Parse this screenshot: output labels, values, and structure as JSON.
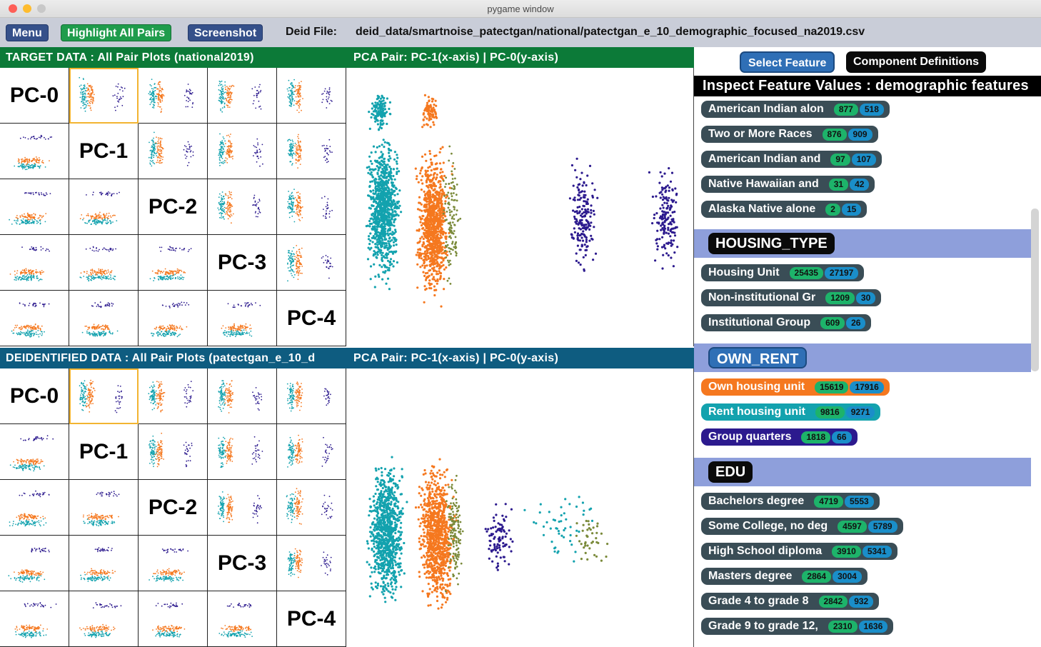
{
  "window": {
    "title": "pygame window"
  },
  "toolbar": {
    "menu_label": "Menu",
    "highlight_label": "Highlight All Pairs",
    "screenshot_label": "Screenshot",
    "deid_file_label": "Deid File:",
    "deid_file_path": "deid_data/smartnoise_patectgan/national/patectgan_e_10_demographic_focused_na2019.csv"
  },
  "target": {
    "title": "TARGET DATA : All Pair Plots (national2019)",
    "pca_pair": "PCA Pair: PC-1(x-axis) | PC-0(y-axis)"
  },
  "deid": {
    "title": "DEIDENTIFIED DATA : All Pair Plots (patectgan_e_10_d",
    "pca_pair": "PCA Pair: PC-1(x-axis) | PC-0(y-axis)"
  },
  "components": [
    "PC-0",
    "PC-1",
    "PC-2",
    "PC-3",
    "PC-4"
  ],
  "sidebar": {
    "select_feature_label": "Select Feature",
    "component_definitions_label": "Component Definitions",
    "inspect_title": "Inspect Feature Values : demographic features",
    "race_items": [
      {
        "name": "American Indian alon",
        "a": "877",
        "b": "518"
      },
      {
        "name": "Two or More Races",
        "a": "876",
        "b": "909"
      },
      {
        "name": "American Indian and",
        "a": "97",
        "b": "107"
      },
      {
        "name": "Native Hawaiian and",
        "a": "31",
        "b": "42"
      },
      {
        "name": "Alaska Native alone",
        "a": "2",
        "b": "15"
      }
    ],
    "housing_type": {
      "label": "HOUSING_TYPE",
      "items": [
        {
          "name": "Housing Unit",
          "a": "25435",
          "b": "27197"
        },
        {
          "name": "Non-institutional Gr",
          "a": "1209",
          "b": "30"
        },
        {
          "name": "Institutional Group",
          "a": "609",
          "b": "26"
        }
      ]
    },
    "own_rent": {
      "label": "OWN_RENT",
      "items": [
        {
          "name": "Own housing unit",
          "a": "15619",
          "b": "17916"
        },
        {
          "name": "Rent housing unit",
          "a": "9816",
          "b": "9271"
        },
        {
          "name": "Group quarters",
          "a": "1818",
          "b": "66"
        }
      ]
    },
    "edu": {
      "label": "EDU",
      "items": [
        {
          "name": "Bachelors degree",
          "a": "4719",
          "b": "5553"
        },
        {
          "name": "Some College, no deg",
          "a": "4597",
          "b": "5789"
        },
        {
          "name": "High School diploma",
          "a": "3910",
          "b": "5341"
        },
        {
          "name": "Masters degree",
          "a": "2864",
          "b": "3004"
        },
        {
          "name": "Grade 4 to grade 8",
          "a": "2842",
          "b": "932"
        },
        {
          "name": "Grade 9 to grade 12,",
          "a": "2310",
          "b": "1636"
        }
      ]
    }
  },
  "colors": {
    "teal": "#13a2ae",
    "orange": "#f5781f",
    "navy": "#2c1a8e",
    "olive": "#7a8a3a",
    "target_bar": "#0c7a38",
    "deid_bar": "#0e5c80"
  }
}
